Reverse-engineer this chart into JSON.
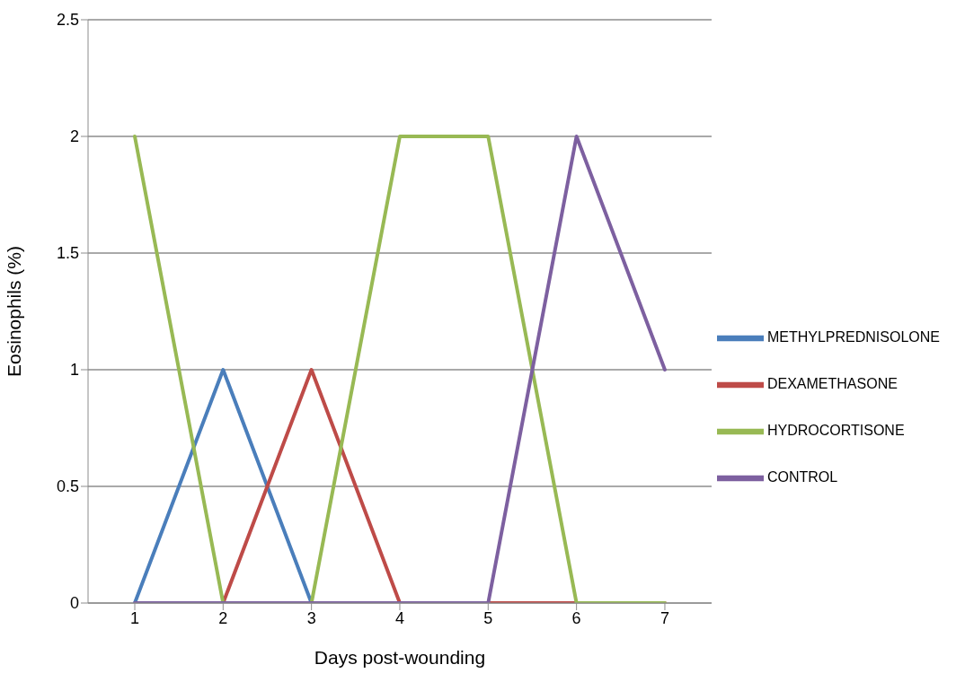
{
  "chart_data": {
    "type": "line",
    "xlabel": "Days post-wounding",
    "ylabel": "Eosinophils  (%)",
    "categories": [
      "1",
      "2",
      "3",
      "4",
      "5",
      "6",
      "7"
    ],
    "series": [
      {
        "name": "METHYLPREDNISOLONE",
        "color": "#4a7ebb",
        "values": [
          0,
          1,
          0,
          null,
          null,
          null,
          null
        ]
      },
      {
        "name": "DEXAMETHASONE",
        "color": "#be4b48",
        "values": [
          null,
          0,
          1,
          0,
          0,
          0,
          0
        ]
      },
      {
        "name": "HYDROCORTISONE",
        "color": "#98b954",
        "values": [
          2,
          0,
          0,
          2,
          2,
          0,
          0
        ]
      },
      {
        "name": "CONTROL",
        "color": "#7d60a0",
        "values": [
          0,
          0,
          0,
          0,
          0,
          2,
          1
        ]
      }
    ],
    "ylim": [
      0,
      2.5
    ],
    "yticks": [
      0,
      0.5,
      1,
      1.5,
      2,
      2.5
    ],
    "grid": "y",
    "legend": "right",
    "marker": "none",
    "line_style": "solid"
  }
}
